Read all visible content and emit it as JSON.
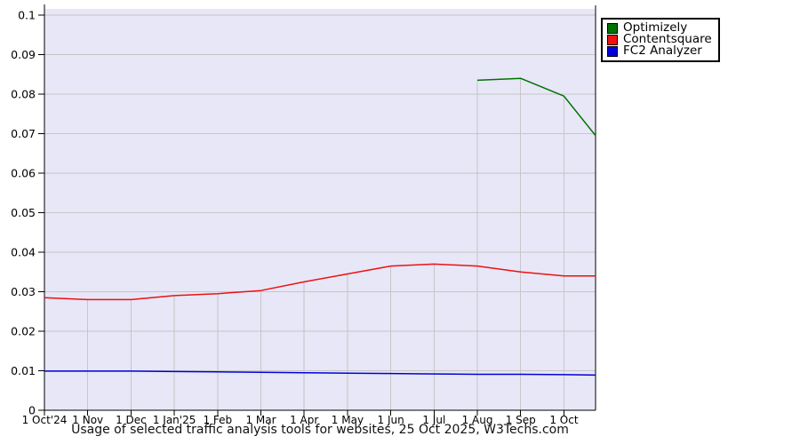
{
  "caption": "Usage of selected traffic analysis tools for websites, 25 Oct 2025, W3Techs.com",
  "chart_data": {
    "type": "line",
    "title": "Usage of selected traffic analysis tools for websites, 25 Oct 2025, W3Techs.com",
    "grid": true,
    "legend_position": "top-right-outside",
    "ylim": [
      0,
      0.1
    ],
    "y_ticks": [
      0,
      0.01,
      0.02,
      0.03,
      0.04,
      0.05,
      0.06,
      0.07,
      0.08,
      0.09,
      0.1
    ],
    "y_tick_labels": [
      "0",
      "0.01",
      "0.02",
      "0.03",
      "0.04",
      "0.05",
      "0.06",
      "0.07",
      "0.08",
      "0.09",
      "0.1"
    ],
    "x_tick_labels": [
      "1 Oct'24",
      "1 Nov",
      "1 Dec",
      "1 Jan'25",
      "1 Feb",
      "1 Mar",
      "1 Apr",
      "1 May",
      "1 Jun",
      "1 Jul",
      "1 Aug",
      "1 Sep",
      "1 Oct"
    ],
    "x_month_indices": [
      0,
      1,
      2,
      3,
      4,
      5,
      6,
      7,
      8,
      9,
      10,
      11,
      12
    ],
    "x_end_index": 12.73,
    "colors": {
      "plot_bg": "#e7e7f7",
      "grid": "#c6c6c6",
      "axis": "#000000",
      "text": "#000000"
    },
    "series": [
      {
        "name": "Optimizely",
        "color": "#007200",
        "x": [
          10,
          11,
          12,
          12.73
        ],
        "values": [
          0.0835,
          0.084,
          0.0795,
          0.0695
        ]
      },
      {
        "name": "Contentsquare",
        "color": "#ee1111",
        "x": [
          0,
          1,
          2,
          3,
          4,
          5,
          6,
          7,
          8,
          9,
          10,
          11,
          12,
          12.73
        ],
        "values": [
          0.0285,
          0.028,
          0.028,
          0.029,
          0.0295,
          0.0303,
          0.0325,
          0.0345,
          0.0365,
          0.037,
          0.0365,
          0.035,
          0.034,
          0.034
        ]
      },
      {
        "name": "FC2 Analyzer",
        "color": "#0000dd",
        "x": [
          0,
          1,
          2,
          3,
          4,
          5,
          6,
          7,
          8,
          9,
          10,
          11,
          12,
          12.73
        ],
        "values": [
          0.0099,
          0.0099,
          0.0099,
          0.0098,
          0.0097,
          0.0096,
          0.0095,
          0.0094,
          0.0093,
          0.0092,
          0.0091,
          0.0091,
          0.009,
          0.0089
        ]
      }
    ]
  }
}
